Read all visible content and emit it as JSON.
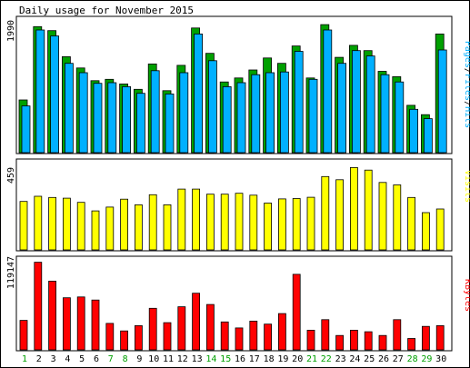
{
  "title": "Daily usage for November 2015",
  "colors": {
    "hits": "#00a000",
    "files": "#00b0ff",
    "visits": "#ffff00",
    "kbytes": "#ff0000",
    "weekend_label": "#00a000",
    "weekday_label": "#000000"
  },
  "legend": {
    "pages": "Pages",
    "sep1": "/",
    "files": "Files",
    "sep2": "/",
    "hits": "Hits",
    "visits": "Visits",
    "kbytes": "KBytes"
  },
  "chart_data": [
    {
      "type": "bar",
      "name": "hits-files-panel",
      "categories": [
        "1",
        "2",
        "3",
        "4",
        "5",
        "6",
        "7",
        "8",
        "9",
        "10",
        "11",
        "12",
        "13",
        "14",
        "15",
        "16",
        "17",
        "18",
        "19",
        "20",
        "21",
        "22",
        "23",
        "24",
        "25",
        "26",
        "27",
        "28",
        "29",
        "30"
      ],
      "ymax_label": "1990",
      "ylim": [
        0,
        1990
      ],
      "series": [
        {
          "name": "Hits",
          "values": [
            790,
            1890,
            1830,
            1440,
            1270,
            1080,
            1100,
            1030,
            950,
            1330,
            930,
            1310,
            1870,
            1490,
            1060,
            1120,
            1240,
            1420,
            1340,
            1600,
            1120,
            1920,
            1430,
            1610,
            1530,
            1220,
            1140,
            710,
            570,
            1780
          ]
        },
        {
          "name": "Files",
          "values": [
            700,
            1840,
            1750,
            1340,
            1200,
            1040,
            1050,
            990,
            890,
            1230,
            880,
            1200,
            1780,
            1380,
            990,
            1050,
            1170,
            1200,
            1210,
            1520,
            1100,
            1840,
            1340,
            1530,
            1450,
            1170,
            1060,
            650,
            510,
            1540
          ]
        }
      ]
    },
    {
      "type": "bar",
      "name": "visits-panel",
      "categories": [
        "1",
        "2",
        "3",
        "4",
        "5",
        "6",
        "7",
        "8",
        "9",
        "10",
        "11",
        "12",
        "13",
        "14",
        "15",
        "16",
        "17",
        "18",
        "19",
        "20",
        "21",
        "22",
        "23",
        "24",
        "25",
        "26",
        "27",
        "28",
        "29",
        "30"
      ],
      "ymax_label": "459",
      "ylim": [
        0,
        459
      ],
      "series": [
        {
          "name": "Visits",
          "values": [
            255,
            282,
            276,
            272,
            250,
            205,
            225,
            267,
            237,
            290,
            237,
            320,
            320,
            293,
            293,
            298,
            288,
            246,
            268,
            270,
            277,
            386,
            369,
            433,
            420,
            355,
            342,
            276,
            196,
            215
          ]
        }
      ]
    },
    {
      "type": "bar",
      "name": "kbytes-panel",
      "categories": [
        "1",
        "2",
        "3",
        "4",
        "5",
        "6",
        "7",
        "8",
        "9",
        "10",
        "11",
        "12",
        "13",
        "14",
        "15",
        "16",
        "17",
        "18",
        "19",
        "20",
        "21",
        "22",
        "23",
        "24",
        "25",
        "26",
        "27",
        "28",
        "29",
        "30"
      ],
      "ymax_label": "119147",
      "ylim": [
        0,
        119147
      ],
      "series": [
        {
          "name": "KBytes",
          "values": [
            39000,
            116000,
            91000,
            69000,
            70000,
            66000,
            35000,
            25000,
            32000,
            55000,
            36000,
            57000,
            75000,
            60000,
            37000,
            29000,
            38000,
            34000,
            48000,
            100000,
            26000,
            40000,
            19000,
            26000,
            24000,
            19000,
            40000,
            15000,
            31000,
            32000
          ]
        }
      ]
    }
  ],
  "x_labels": {
    "days": [
      "1",
      "2",
      "3",
      "4",
      "5",
      "6",
      "7",
      "8",
      "9",
      "10",
      "11",
      "12",
      "13",
      "14",
      "15",
      "16",
      "17",
      "18",
      "19",
      "20",
      "21",
      "22",
      "23",
      "24",
      "25",
      "26",
      "27",
      "28",
      "29",
      "30"
    ],
    "weekend": [
      1,
      7,
      8,
      14,
      15,
      21,
      22,
      28,
      29
    ]
  }
}
